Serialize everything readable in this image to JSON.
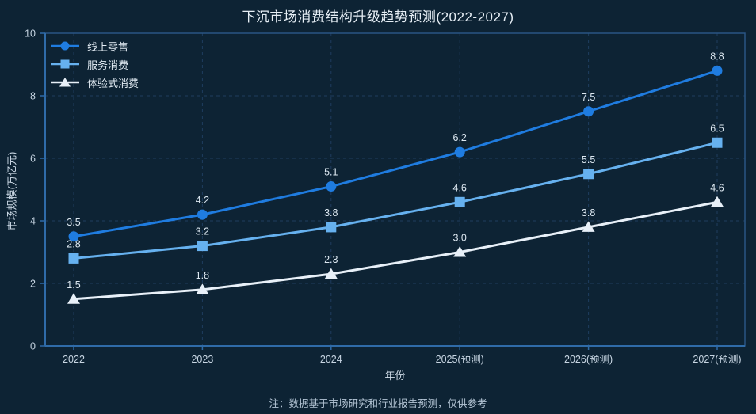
{
  "note": "注：数据基于市场研究和行业报告预测，仅供参考",
  "colors": {
    "background": "#0d2334",
    "plot_border": "#2a5583",
    "axis_line": "#2f6ba8",
    "grid_line": "#1f3d5e",
    "title_text": "#e6eef5",
    "tick_text": "#c8d6e3",
    "data_label_text": "#dde8f1",
    "note_text": "#b4c5d5",
    "series_online": "#1f7ce0",
    "series_service": "#66b1ef",
    "series_experience": "#e8f0f8"
  },
  "chart_data": {
    "type": "line",
    "title": "下沉市场消费结构升级趋势预测(2022-2027)",
    "categories": [
      "2022",
      "2023",
      "2024",
      "2025(预测)",
      "2026(预测)",
      "2027(预测)"
    ],
    "series": [
      {
        "name": "线上零售",
        "values": [
          3.5,
          4.2,
          5.1,
          6.2,
          7.5,
          8.8
        ],
        "color": "#1f7ce0",
        "marker": "circle"
      },
      {
        "name": "服务消费",
        "values": [
          2.8,
          3.2,
          3.8,
          4.6,
          5.5,
          6.5
        ],
        "color": "#66b1ef",
        "marker": "square"
      },
      {
        "name": "体验式消费",
        "values": [
          1.5,
          1.8,
          2.3,
          3.0,
          3.8,
          4.6
        ],
        "color": "#e8f0f8",
        "marker": "triangle"
      }
    ],
    "xlabel": "年份",
    "ylabel": "市场规模(万亿元)",
    "ylim": [
      0,
      10
    ],
    "yticks": [
      0,
      2,
      4,
      6,
      8,
      10
    ],
    "grid": true,
    "legend_position": "top-left",
    "data_labels": true
  }
}
